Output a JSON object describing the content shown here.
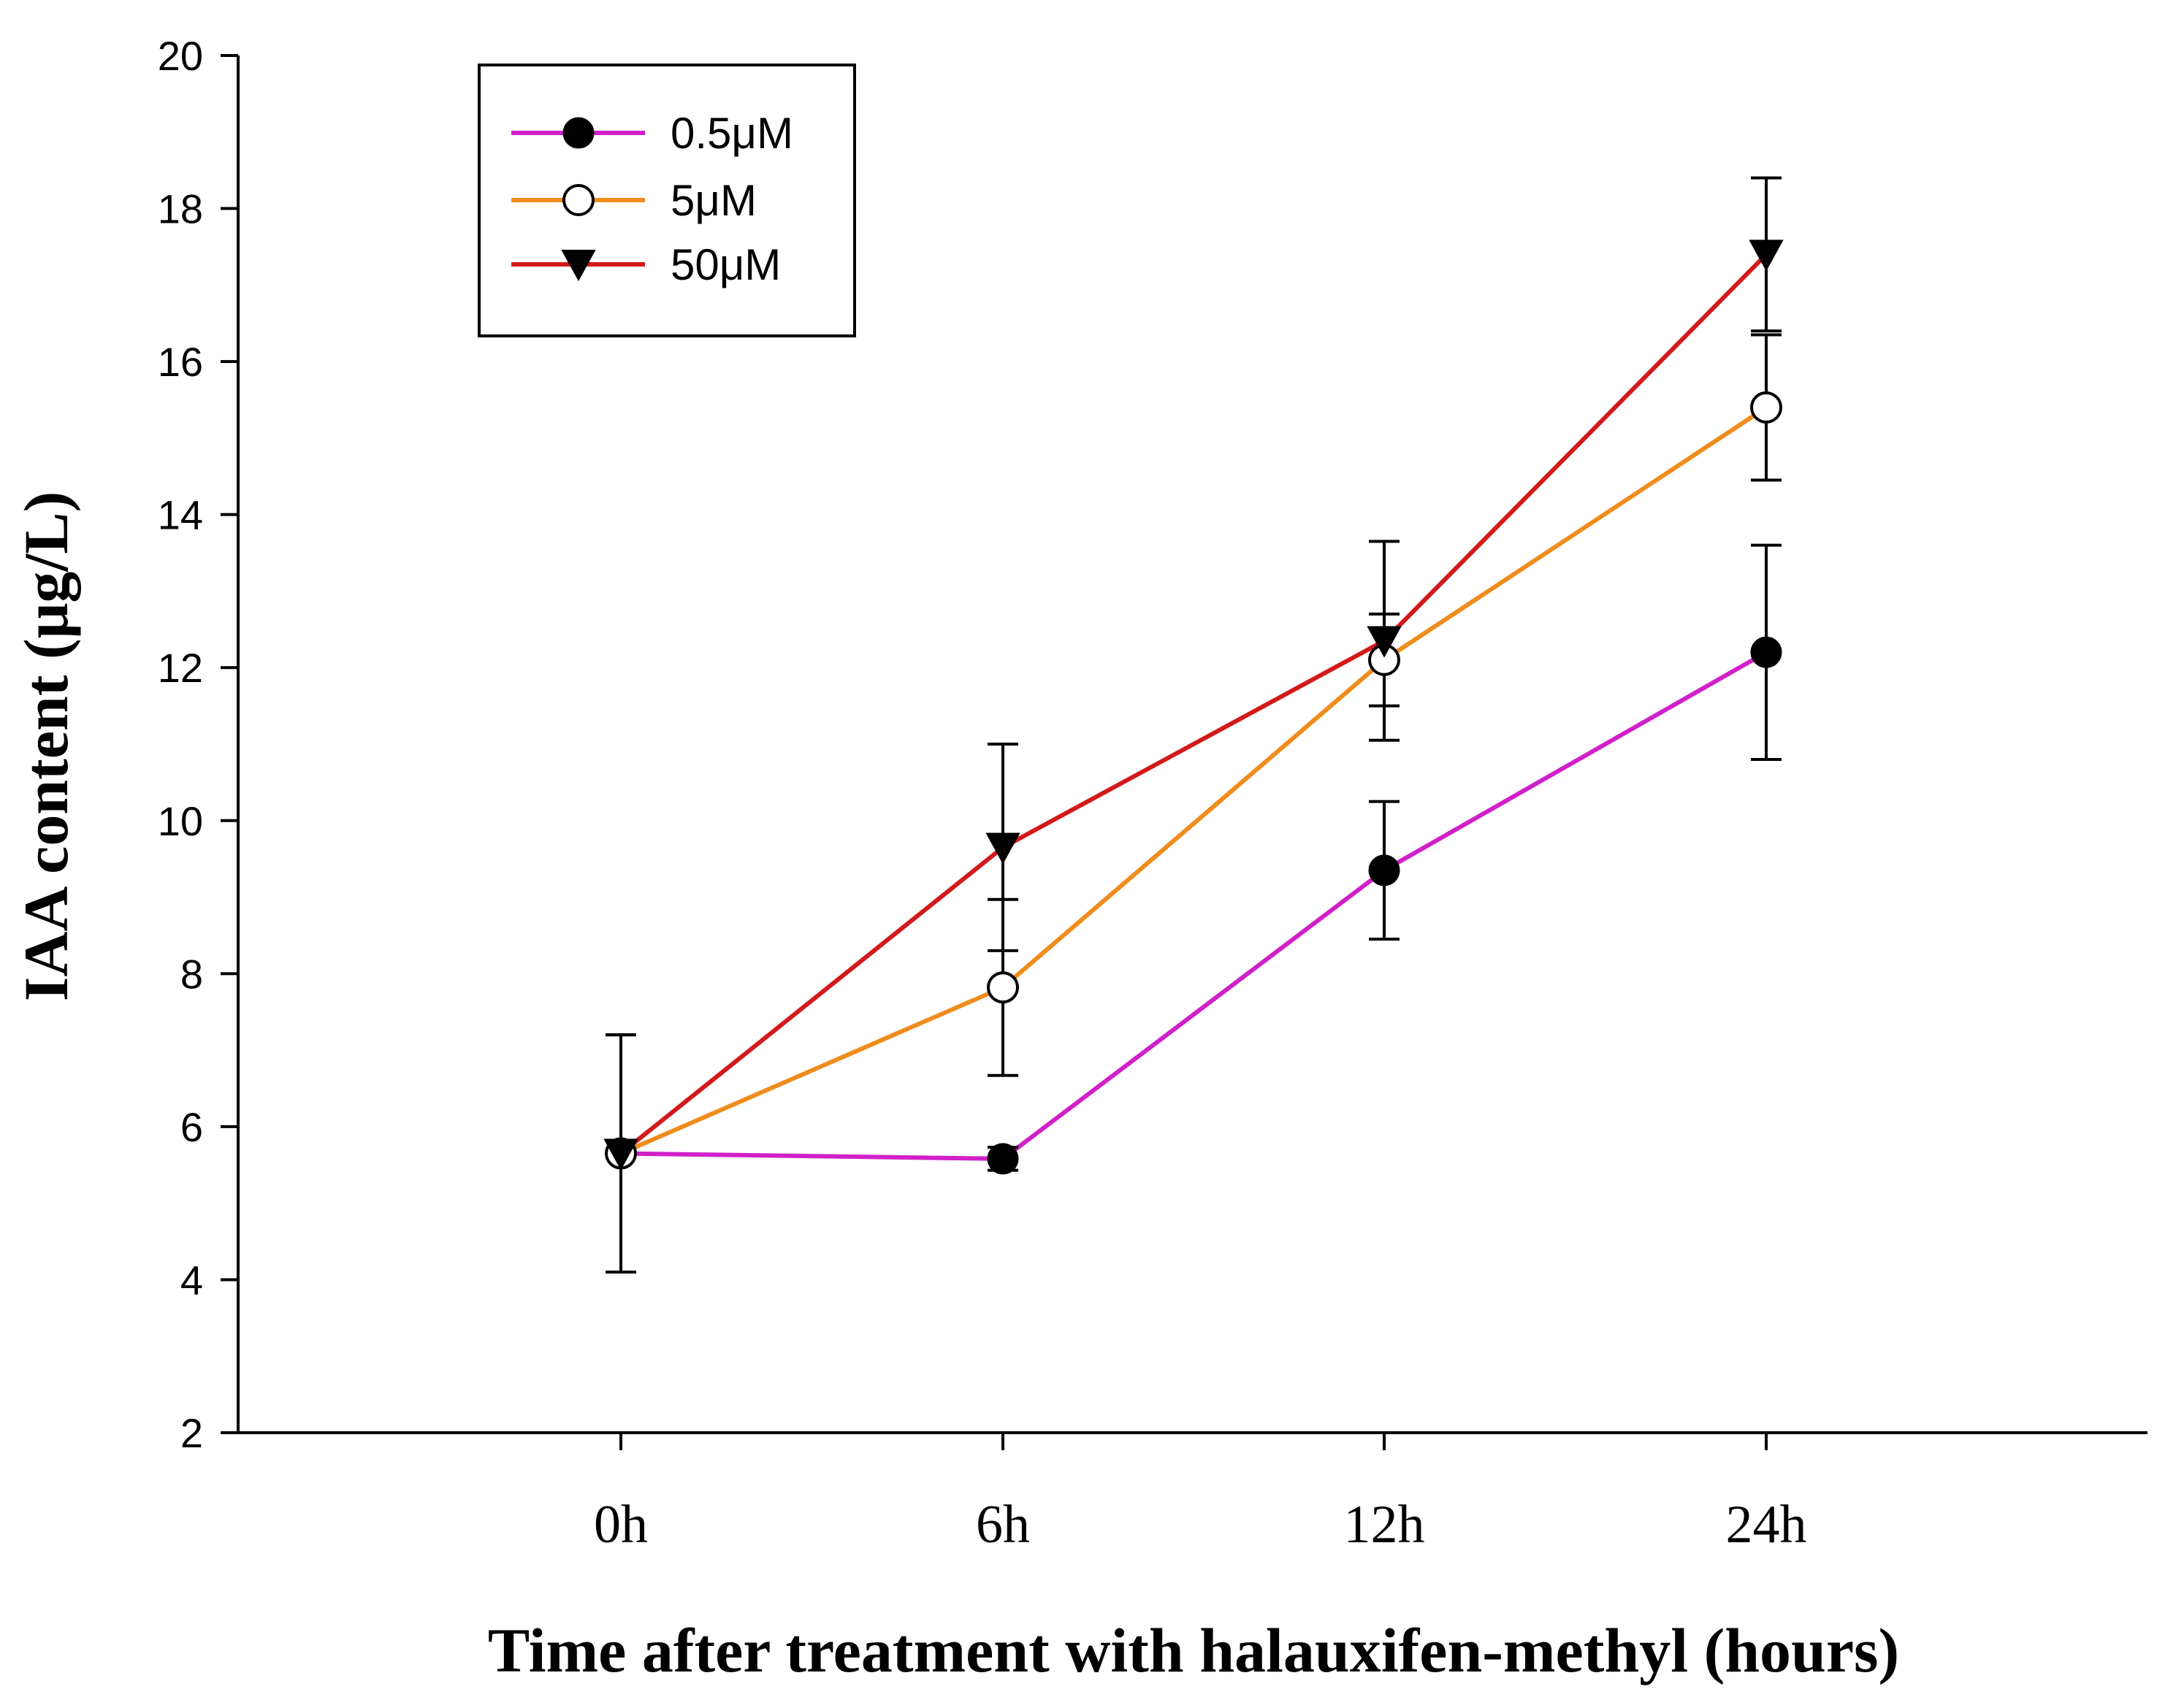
{
  "chart_data": {
    "type": "line",
    "title": "",
    "xlabel": "Time after treatment with halauxifen-methyl (hours)",
    "ylabel": "IAA content (μg/L)",
    "categories": [
      "0h",
      "6h",
      "12h",
      "24h"
    ],
    "ylim": [
      2,
      20
    ],
    "yticks": [
      2,
      4,
      6,
      8,
      10,
      12,
      14,
      16,
      18,
      20
    ],
    "legend_position": "top-left",
    "series": [
      {
        "name": "0.5μM",
        "color": "#d11fc9",
        "marker": "filled-circle",
        "values": [
          5.65,
          5.58,
          9.35,
          12.2
        ],
        "errors": [
          1.55,
          0.15,
          0.9,
          1.4
        ]
      },
      {
        "name": "5μM",
        "color": "#f08c1c",
        "marker": "open-circle",
        "values": [
          5.65,
          7.82,
          12.1,
          15.4
        ],
        "errors": [
          1.55,
          1.15,
          0.6,
          0.95
        ]
      },
      {
        "name": "50μM",
        "color": "#d21a1a",
        "marker": "filled-triangle-down",
        "values": [
          5.65,
          9.65,
          12.35,
          17.4
        ],
        "errors": [
          1.55,
          1.35,
          1.3,
          1.0
        ]
      }
    ]
  }
}
